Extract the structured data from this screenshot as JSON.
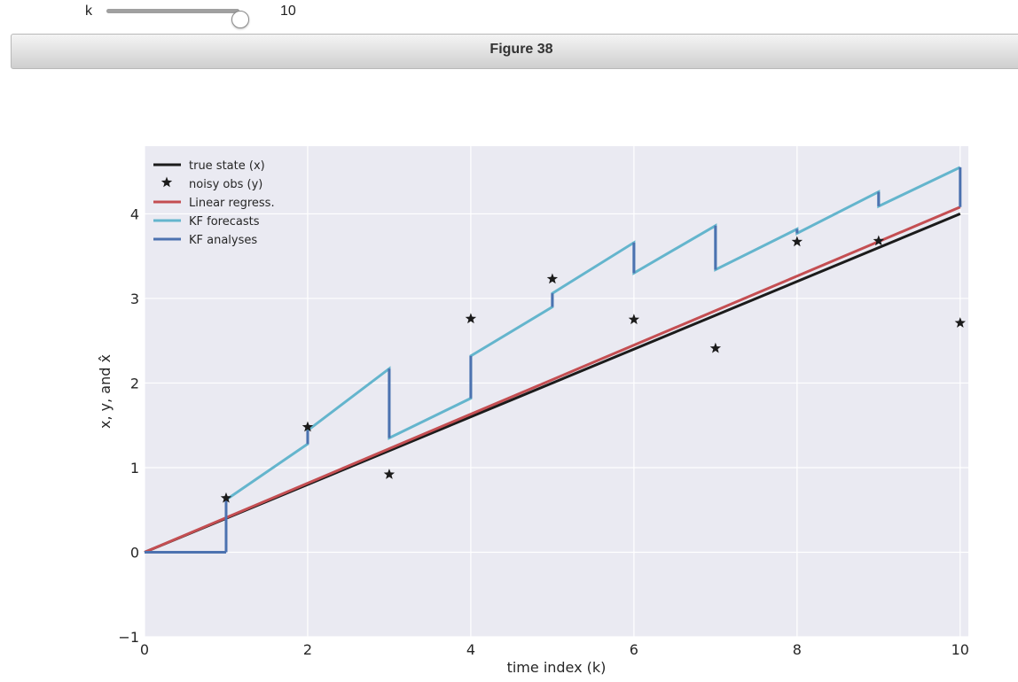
{
  "slider": {
    "label": "k",
    "min": 0,
    "max": 10,
    "value": 10,
    "value_text": "10"
  },
  "figure": {
    "title": "Figure 38"
  },
  "chart_data": {
    "type": "line",
    "xlabel": "time index (k)",
    "ylabel": "x, y, and x̂",
    "xlim": [
      0,
      10.1
    ],
    "ylim": [
      -1,
      4.8
    ],
    "xticks": [
      0,
      2,
      4,
      6,
      8,
      10
    ],
    "yticks": [
      -1,
      0,
      1,
      2,
      3,
      4
    ],
    "grid": true,
    "background": "#eaeaf2",
    "legend_position": "top-left",
    "series": [
      {
        "name": "true state (x)",
        "style": "line",
        "color": "#1b1b1b",
        "points": [
          [
            0,
            0
          ],
          [
            10,
            4.0
          ]
        ]
      },
      {
        "name": "noisy obs (y)",
        "style": "star",
        "color": "#1b1b1b",
        "points": [
          [
            1,
            0.64
          ],
          [
            2,
            1.48
          ],
          [
            3,
            0.92
          ],
          [
            4,
            2.76
          ],
          [
            5,
            3.23
          ],
          [
            6,
            2.75
          ],
          [
            7,
            2.41
          ],
          [
            8,
            3.67
          ],
          [
            9,
            3.68
          ],
          [
            10,
            2.71
          ]
        ]
      },
      {
        "name": "Linear regress.",
        "style": "line",
        "color": "#c44e52",
        "points": [
          [
            0,
            0
          ],
          [
            10,
            4.08
          ]
        ]
      },
      {
        "name": "KF forecasts",
        "style": "line",
        "color": "#64b5cd",
        "points": [
          [
            1,
            0.62
          ],
          [
            2,
            1.28
          ],
          [
            2,
            1.44
          ],
          [
            3,
            2.17
          ],
          [
            3,
            1.35
          ],
          [
            4,
            1.82
          ],
          [
            4,
            2.32
          ],
          [
            5,
            2.9
          ],
          [
            5,
            3.06
          ],
          [
            6,
            3.66
          ],
          [
            6,
            3.3
          ],
          [
            7,
            3.86
          ],
          [
            7,
            3.34
          ],
          [
            8,
            3.82
          ],
          [
            8,
            3.77
          ],
          [
            9,
            4.26
          ],
          [
            9,
            4.09
          ],
          [
            10,
            4.55
          ]
        ]
      },
      {
        "name": "KF analyses",
        "style": "line",
        "color": "#4c72b0",
        "segments": [
          [
            [
              0,
              0
            ],
            [
              1,
              0
            ]
          ],
          [
            [
              1,
              0
            ],
            [
              1,
              0.62
            ]
          ],
          [
            [
              2,
              1.28
            ],
            [
              2,
              1.44
            ]
          ],
          [
            [
              3,
              2.17
            ],
            [
              3,
              1.35
            ]
          ],
          [
            [
              4,
              1.82
            ],
            [
              4,
              2.32
            ]
          ],
          [
            [
              5,
              2.9
            ],
            [
              5,
              3.06
            ]
          ],
          [
            [
              6,
              3.66
            ],
            [
              6,
              3.3
            ]
          ],
          [
            [
              7,
              3.86
            ],
            [
              7,
              3.34
            ]
          ],
          [
            [
              8,
              3.82
            ],
            [
              8,
              3.77
            ]
          ],
          [
            [
              9,
              4.26
            ],
            [
              9,
              4.09
            ]
          ],
          [
            [
              10,
              4.55
            ],
            [
              10,
              4.08
            ]
          ]
        ]
      }
    ]
  }
}
